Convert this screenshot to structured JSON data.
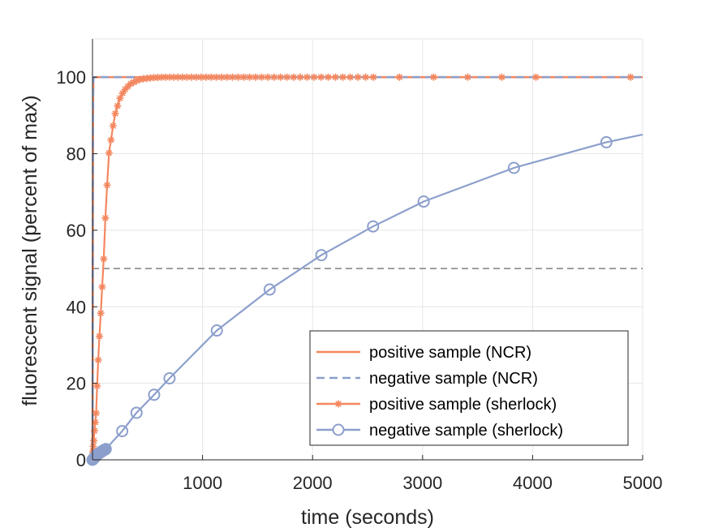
{
  "chart_data": {
    "type": "line",
    "xlabel": "time (seconds)",
    "ylabel": "fluorescent signal (percent of max)",
    "xlim": [
      0,
      5000
    ],
    "ylim": [
      0,
      110
    ],
    "xticks": [
      1000,
      2000,
      3000,
      4000,
      5000
    ],
    "yticks": [
      0,
      20,
      40,
      60,
      80,
      100
    ],
    "grid": true,
    "legend_position": "bottom-right",
    "colors": {
      "orange": "#f4875f",
      "blue": "#8c9fcc",
      "threshold": "#808080"
    },
    "threshold_line": {
      "y": 50,
      "style": "dashed"
    },
    "series": [
      {
        "name": "positive sample (NCR)",
        "color": "#f4875f",
        "line": "solid",
        "marker": "none",
        "x": [
          0,
          1,
          2,
          3,
          4,
          5,
          6,
          8,
          10,
          15,
          20,
          5000
        ],
        "y": [
          0,
          10,
          30,
          50,
          70,
          85,
          95,
          99,
          99.7,
          100,
          100,
          100
        ]
      },
      {
        "name": "negative sample (NCR)",
        "color": "#8c9fcc",
        "line": "dashed",
        "marker": "none",
        "x": [
          0,
          1,
          2,
          3,
          4,
          5,
          6,
          8,
          10,
          15,
          20,
          5000
        ],
        "y": [
          0,
          10,
          30,
          50,
          70,
          85,
          95,
          99,
          99.7,
          100,
          100,
          100
        ]
      },
      {
        "name": "positive sample (sherlock)",
        "color": "#f4875f",
        "line": "solid",
        "marker": "asterisk",
        "x": [
          0,
          3,
          7,
          12,
          18,
          25,
          33,
          42,
          52,
          63,
          75,
          88,
          102,
          117,
          133,
          150,
          168,
          187,
          207,
          228,
          250,
          273,
          297,
          322,
          348,
          375,
          403,
          432,
          462,
          493,
          525,
          558,
          592,
          627,
          663,
          700,
          738,
          777,
          817,
          858,
          900,
          943,
          987,
          1032,
          1078,
          1125,
          1173,
          1222,
          1272,
          1323,
          1375,
          1428,
          1482,
          1537,
          1593,
          1650,
          1708,
          1767,
          1827,
          1888,
          1950,
          2013,
          2077,
          2142,
          2208,
          2275,
          2343,
          2412,
          2482,
          2553,
          2790,
          3100,
          3410,
          3720,
          4030,
          4890
        ],
        "y": [
          1.2,
          2.2,
          3.5,
          5.0,
          7.6,
          9.8,
          12.2,
          19.3,
          26.1,
          32.3,
          38.3,
          45.2,
          52.5,
          63.2,
          71.8,
          80.2,
          83.6,
          87.3,
          90.5,
          92.5,
          94.5,
          95.8,
          96.8,
          97.6,
          98.3,
          98.7,
          99.1,
          99.4,
          99.6,
          99.7,
          99.8,
          99.9,
          99.9,
          100,
          100,
          100,
          100,
          100,
          100,
          100,
          100,
          100,
          100,
          100,
          100,
          100,
          100,
          100,
          100,
          100,
          100,
          100,
          100,
          100,
          100,
          100,
          100,
          100,
          100,
          100,
          100,
          100,
          100,
          100,
          100,
          100,
          100,
          100,
          100,
          100,
          100,
          100,
          100,
          100,
          100,
          100
        ]
      },
      {
        "name": "negative sample (sherlock)",
        "color": "#8c9fcc",
        "line": "solid",
        "marker": "circle",
        "x": [
          0,
          10,
          20,
          30,
          40,
          50,
          60,
          70,
          80,
          90,
          100,
          110,
          120,
          270,
          400,
          560,
          700,
          1130,
          1610,
          2080,
          2550,
          3010,
          3830,
          4670
        ],
        "y": [
          0,
          0.3,
          0.6,
          1.0,
          1.3,
          1.5,
          1.7,
          1.9,
          2.1,
          2.3,
          2.5,
          2.6,
          2.8,
          7.5,
          12.3,
          17.0,
          21.3,
          33.8,
          44.5,
          53.5,
          61.0,
          67.5,
          76.3,
          83.0
        ]
      }
    ],
    "blue_curve_extension": {
      "x": [
        4670,
        5000
      ],
      "y": [
        83.0,
        85.0
      ]
    }
  }
}
